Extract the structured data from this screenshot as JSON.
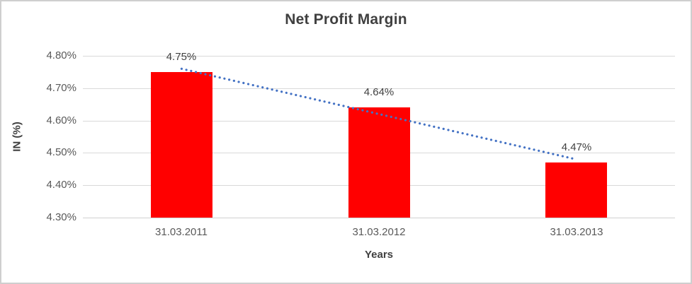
{
  "chart_data": {
    "type": "bar",
    "title": "Net Profit Margin",
    "categories": [
      "31.03.2011",
      "31.03.2012",
      "31.03.2013"
    ],
    "values": [
      4.75,
      4.64,
      4.47
    ],
    "data_labels": [
      "4.75%",
      "4.64%",
      "4.47%"
    ],
    "xlabel": "Years",
    "ylabel": "IN (%)",
    "ylim": [
      4.3,
      4.8
    ],
    "ytick_step": 0.1,
    "ytick_labels": [
      "4.30%",
      "4.40%",
      "4.50%",
      "4.60%",
      "4.70%",
      "4.80%"
    ],
    "grid": true,
    "legend": "none",
    "bar_color": "#FF0000",
    "gridline_color": "#D9D9D9",
    "trendline": {
      "type": "linear",
      "style": "dotted",
      "color": "#4472C4"
    },
    "text_colors": {
      "title": "#404040",
      "tick_labels": "#595959",
      "data_labels": "#404040"
    }
  }
}
